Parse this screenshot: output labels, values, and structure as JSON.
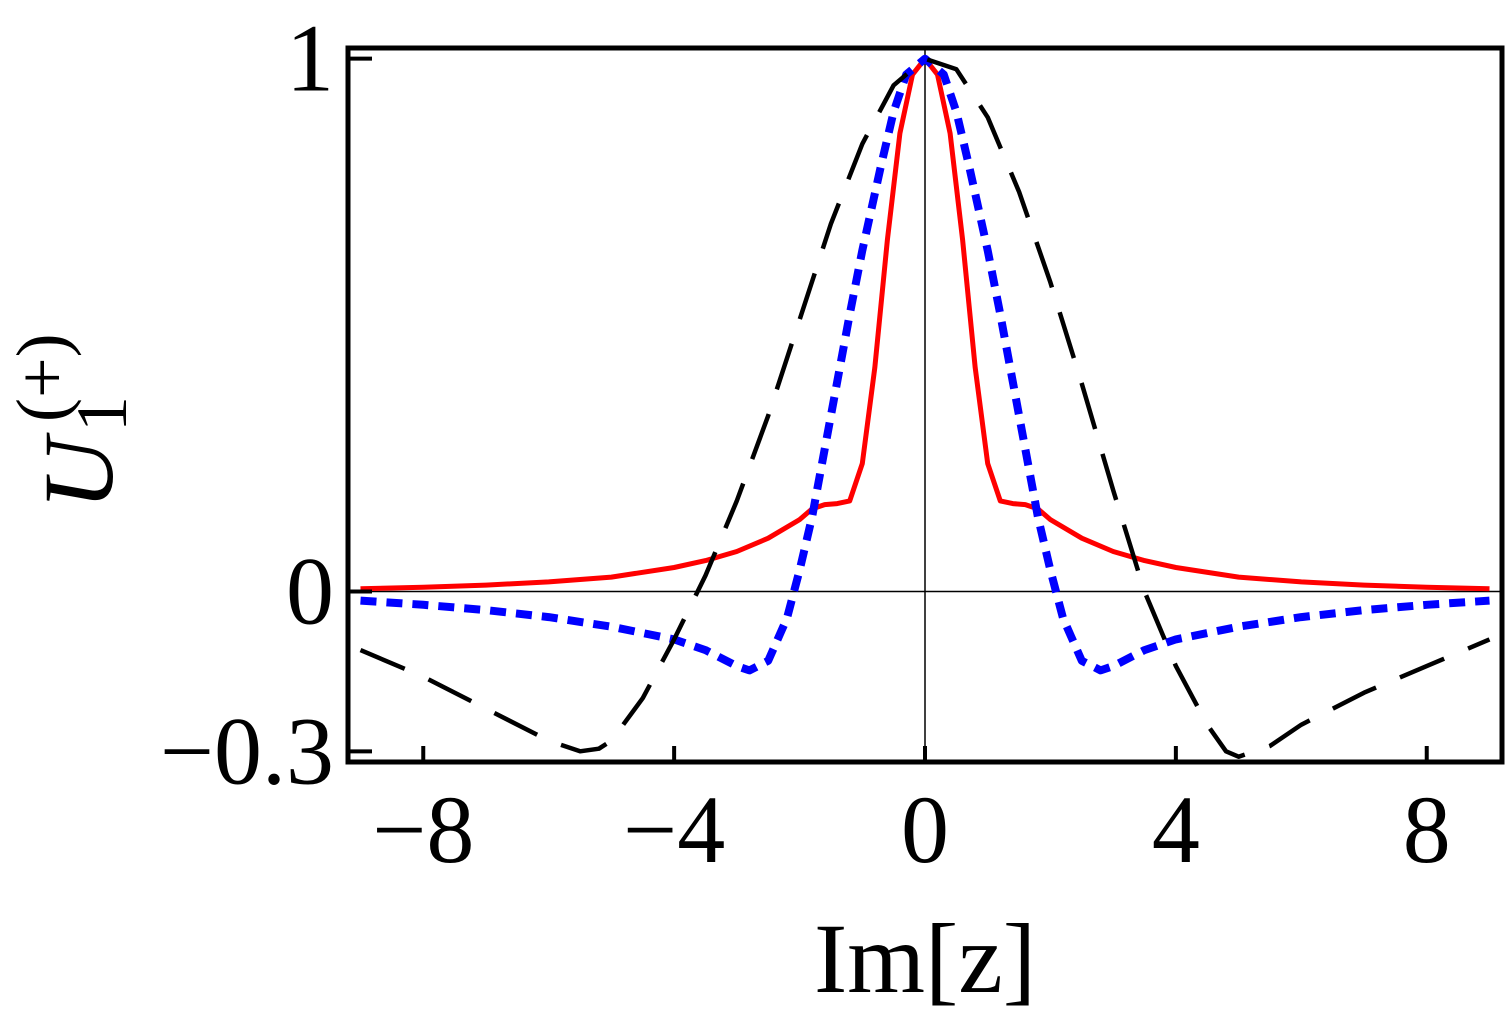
{
  "chart_data": {
    "type": "line",
    "xlabel": "Im[z]",
    "ylabel": {
      "base": "U",
      "subscript": "1",
      "superscript": "(+)"
    },
    "xlim": [
      -9.2,
      9.2
    ],
    "ylim": [
      -0.32,
      1.02
    ],
    "x_ticks": [
      -8,
      -4,
      0,
      4,
      8
    ],
    "x_tick_labels": [
      "−8",
      "−4",
      "0",
      "4",
      "8"
    ],
    "y_ticks": [
      -0.3,
      0,
      1
    ],
    "y_tick_labels": [
      "−0.3",
      "0",
      "1"
    ],
    "series": [
      {
        "name": "solid red",
        "color": "#ff0000",
        "style": "solid",
        "x": [
          -9,
          -8,
          -7,
          -6,
          -5,
          -4,
          -3.5,
          -3,
          -2.5,
          -2,
          -1.8,
          -1.6,
          -1.4,
          -1.2,
          -1.0,
          -0.8,
          -0.6,
          -0.4,
          -0.2,
          0,
          0.2,
          0.4,
          0.6,
          0.8,
          1.0,
          1.2,
          1.4,
          1.6,
          1.8,
          2,
          2.5,
          3,
          3.5,
          4,
          5,
          6,
          7,
          8,
          9
        ],
        "values": [
          0.005,
          0.008,
          0.012,
          0.018,
          0.027,
          0.045,
          0.058,
          0.075,
          0.1,
          0.135,
          0.155,
          0.163,
          0.165,
          0.17,
          0.24,
          0.42,
          0.66,
          0.86,
          0.97,
          1.0,
          0.97,
          0.86,
          0.66,
          0.42,
          0.24,
          0.17,
          0.165,
          0.163,
          0.155,
          0.135,
          0.1,
          0.075,
          0.058,
          0.045,
          0.027,
          0.018,
          0.012,
          0.008,
          0.005
        ]
      },
      {
        "name": "dotted blue",
        "color": "#0000ff",
        "style": "dotted",
        "x": [
          -9,
          -8,
          -7,
          -6,
          -5,
          -4,
          -3.5,
          -3,
          -2.8,
          -2.5,
          -2.2,
          -2,
          -1.8,
          -1.5,
          -1.2,
          -1.0,
          -0.7,
          -0.5,
          -0.3,
          0,
          0.3,
          0.5,
          0.7,
          1.0,
          1.2,
          1.5,
          1.8,
          2,
          2.2,
          2.5,
          2.8,
          3,
          3.5,
          4,
          5,
          6,
          7,
          8,
          9
        ],
        "values": [
          -0.017,
          -0.025,
          -0.035,
          -0.048,
          -0.066,
          -0.09,
          -0.11,
          -0.14,
          -0.148,
          -0.13,
          -0.05,
          0.04,
          0.14,
          0.33,
          0.52,
          0.64,
          0.8,
          0.9,
          0.97,
          1.0,
          0.97,
          0.9,
          0.8,
          0.64,
          0.52,
          0.33,
          0.14,
          0.04,
          -0.05,
          -0.13,
          -0.148,
          -0.14,
          -0.11,
          -0.09,
          -0.066,
          -0.048,
          -0.035,
          -0.025,
          -0.017
        ]
      },
      {
        "name": "dashed black",
        "color": "#000000",
        "style": "dashed",
        "x": [
          -9,
          -8,
          -7,
          -6,
          -5.5,
          -5.2,
          -5,
          -4.5,
          -4,
          -3.5,
          -3,
          -2.5,
          -2,
          -1.5,
          -1,
          -0.5,
          0,
          0.5,
          1,
          1.5,
          2,
          2.5,
          3,
          3.5,
          4,
          4.5,
          4.8,
          5,
          5.5,
          6,
          7,
          8,
          9
        ],
        "values": [
          -0.11,
          -0.16,
          -0.22,
          -0.28,
          -0.3,
          -0.295,
          -0.28,
          -0.2,
          -0.09,
          0.03,
          0.17,
          0.33,
          0.51,
          0.69,
          0.84,
          0.95,
          1.0,
          0.98,
          0.89,
          0.75,
          0.58,
          0.39,
          0.19,
          0.0,
          -0.14,
          -0.25,
          -0.3,
          -0.31,
          -0.29,
          -0.25,
          -0.19,
          -0.14,
          -0.09
        ]
      }
    ]
  }
}
